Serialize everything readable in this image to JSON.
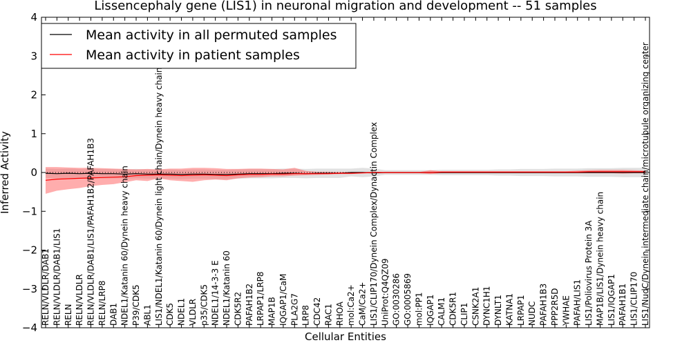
{
  "chart_data": {
    "type": "line",
    "title": "Lissencephaly gene (LIS1) in neuronal migration and development -- 51 samples",
    "xlabel": "Cellular Entities",
    "ylabel": "Inferred Activity",
    "ylim": [
      -4,
      4
    ],
    "yticks": [
      4,
      3,
      2,
      1,
      0,
      -1,
      -2,
      -3,
      -4
    ],
    "ytick_labels": [
      "4",
      "3",
      "2",
      "1",
      "0",
      "−1",
      "−2",
      "−3",
      "−4"
    ],
    "legend_position": "top-left",
    "categories": [
      "RELN/VLDLR/DAB1",
      "RELN/VLDLR/DAB1/LIS1",
      "RELN",
      "RELN/VLDLR",
      "RELN/VLDLR/DAB1/LIS1/PAFAH1B2/PAFAH1B3",
      "RELN/LRP8",
      "DAB1",
      "NDEL1/Katanin 60/Dynein heavy chain",
      "P39/CDK5",
      "ABL1",
      "LIS1/NDEL1/Katanin 60/Dynein light chain/Dynein heavy chain",
      "CDK5",
      "NDEL1",
      "VLDLR",
      "p35/CDK5",
      "NDEL1/14-3-3 E",
      "NDEL1/Katanin 60",
      "CDK5R2",
      "PAFAH1B2",
      "LRPAP1/LRP8",
      "MAP1B",
      "IQGAP1/CaM",
      "PLA2G7",
      "LRP8",
      "CDC42",
      "RAC1",
      "RHOA",
      "mol:Ca2+",
      "CaM/Ca2+",
      "LIS1/CLIP170/Dynein Complex/Dynactin Complex",
      "UniProt:Q4QZ09",
      "GO:0030286",
      "GO:0005869",
      "mol:PP1",
      "IQGAP1",
      "CALM1",
      "CDK5R1",
      "CLIP1",
      "CSNK2A1",
      "DYNC1H1",
      "DYNLT1",
      "KATNA1",
      "LRPAP1",
      "NUDC",
      "PAFAH1B3",
      "PPP2R5D",
      "YWHAE",
      "PAFAH/LIS1",
      "LIS1/Poliovirus Protein 3A",
      "MAP1B/LIS1/Dynein heavy chain",
      "LIS1/IQGAP1",
      "PAFAH1B1",
      "LIS1/CLIP170",
      "LIS1/NudC/Dynein intermediate chain/microtubule organizing center"
    ],
    "series": [
      {
        "name": "Mean activity in all permuted samples",
        "color": "#000000",
        "values": [
          -0.02,
          -0.03,
          -0.02,
          -0.03,
          -0.02,
          -0.03,
          -0.03,
          -0.04,
          -0.03,
          -0.04,
          -0.04,
          -0.04,
          -0.05,
          -0.04,
          -0.04,
          -0.05,
          -0.05,
          -0.04,
          -0.03,
          -0.03,
          -0.03,
          -0.02,
          -0.02,
          -0.03,
          -0.02,
          -0.02,
          -0.02,
          0.0,
          0.0,
          -0.01,
          0.0,
          0.0,
          0.0,
          0.0,
          0.0,
          0.0,
          0.0,
          0.0,
          0.0,
          0.0,
          0.0,
          0.0,
          0.0,
          0.0,
          0.0,
          0.0,
          0.0,
          0.0,
          0.0,
          0.0,
          0.0,
          0.0,
          0.0,
          0.0
        ],
        "band_low": [
          -0.14,
          -0.15,
          -0.14,
          -0.15,
          -0.14,
          -0.15,
          -0.15,
          -0.16,
          -0.15,
          -0.16,
          -0.16,
          -0.16,
          -0.17,
          -0.16,
          -0.16,
          -0.17,
          -0.17,
          -0.16,
          -0.15,
          -0.15,
          -0.15,
          -0.14,
          -0.14,
          -0.15,
          -0.14,
          -0.14,
          -0.14,
          -0.1,
          -0.12,
          -0.1,
          -0.06,
          -0.06,
          -0.06,
          -0.06,
          -0.06,
          -0.07,
          -0.07,
          -0.07,
          -0.07,
          -0.07,
          -0.08,
          -0.08,
          -0.09,
          -0.09,
          -0.09,
          -0.1,
          -0.1,
          -0.1,
          -0.11,
          -0.11,
          -0.11,
          -0.12,
          -0.12,
          -0.12
        ],
        "band_high": [
          0.1,
          0.09,
          0.1,
          0.09,
          0.1,
          0.09,
          0.09,
          0.08,
          0.09,
          0.08,
          0.08,
          0.08,
          0.07,
          0.08,
          0.08,
          0.07,
          0.07,
          0.08,
          0.09,
          0.09,
          0.09,
          0.1,
          0.1,
          0.09,
          0.1,
          0.1,
          0.1,
          0.1,
          0.12,
          0.1,
          0.06,
          0.06,
          0.06,
          0.06,
          0.06,
          0.07,
          0.07,
          0.07,
          0.07,
          0.07,
          0.08,
          0.08,
          0.09,
          0.09,
          0.09,
          0.1,
          0.1,
          0.1,
          0.11,
          0.11,
          0.11,
          0.12,
          0.12,
          0.12
        ],
        "band_color": "#c8c8c8"
      },
      {
        "name": "Mean activity in patient samples",
        "color": "#ff0000",
        "values": [
          -0.2,
          -0.17,
          -0.16,
          -0.15,
          -0.14,
          -0.13,
          -0.12,
          -0.11,
          -0.08,
          -0.07,
          -0.06,
          -0.07,
          -0.08,
          -0.07,
          -0.06,
          -0.07,
          -0.08,
          -0.06,
          -0.05,
          -0.05,
          -0.04,
          -0.04,
          -0.03,
          -0.03,
          -0.03,
          -0.03,
          -0.02,
          -0.02,
          -0.01,
          0.0,
          0.0,
          0.0,
          0.0,
          0.0,
          0.0,
          0.01,
          0.01,
          0.01,
          0.01,
          0.01,
          0.01,
          0.01,
          0.01,
          0.01,
          0.01,
          0.01,
          0.01,
          0.01,
          0.02,
          0.02,
          0.02,
          0.02,
          0.02,
          0.02
        ],
        "band_low": [
          -0.55,
          -0.47,
          -0.43,
          -0.4,
          -0.35,
          -0.32,
          -0.3,
          -0.25,
          -0.2,
          -0.22,
          -0.15,
          -0.2,
          -0.22,
          -0.24,
          -0.2,
          -0.18,
          -0.2,
          -0.15,
          -0.13,
          -0.12,
          -0.1,
          -0.1,
          -0.08,
          -0.07,
          -0.06,
          -0.05,
          -0.04,
          -0.04,
          -0.02,
          -0.02,
          -0.02,
          -0.02,
          -0.02,
          -0.02,
          -0.04,
          -0.02,
          -0.02,
          -0.02,
          -0.02,
          -0.02,
          -0.02,
          -0.02,
          -0.02,
          -0.02,
          -0.02,
          -0.02,
          -0.02,
          -0.02,
          -0.02,
          -0.02,
          -0.02,
          -0.03,
          -0.02,
          -0.02
        ],
        "band_high": [
          0.14,
          0.14,
          0.13,
          0.12,
          0.12,
          0.11,
          0.1,
          0.09,
          0.08,
          0.09,
          0.08,
          0.1,
          0.1,
          0.12,
          0.12,
          0.11,
          0.09,
          0.09,
          0.1,
          0.1,
          0.09,
          0.08,
          0.12,
          0.04,
          0.02,
          0.02,
          0.01,
          0.01,
          0.01,
          0.02,
          0.01,
          0.01,
          0.01,
          0.01,
          0.06,
          0.03,
          0.03,
          0.03,
          0.03,
          0.03,
          0.03,
          0.03,
          0.03,
          0.03,
          0.03,
          0.03,
          0.03,
          0.05,
          0.06,
          0.07,
          0.07,
          0.07,
          0.06,
          0.05
        ],
        "band_color": "#ff6a6a"
      }
    ]
  }
}
